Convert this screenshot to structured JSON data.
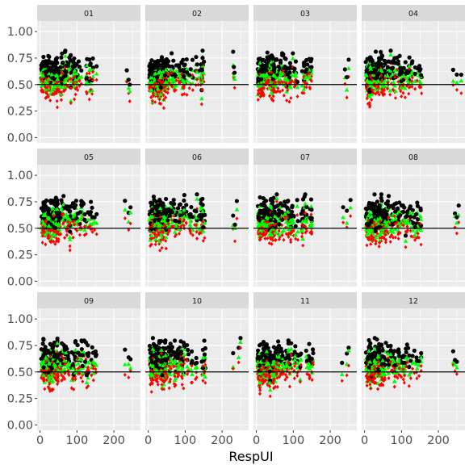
{
  "chart_data": {
    "type": "scatter",
    "xlabel": "RespUI",
    "ylabel": "",
    "xlim": [
      -8,
      272
    ],
    "ylim": [
      -0.05,
      1.1
    ],
    "xticks": [
      0,
      100,
      200
    ],
    "yticks": [
      0.0,
      0.25,
      0.5,
      0.75,
      1.0
    ],
    "ytick_labels": [
      "0.00",
      "0.25",
      "0.50",
      "0.75",
      "1.00"
    ],
    "reference_line_y": 0.5,
    "grid": true,
    "legend": "none",
    "facet_layout": {
      "rows": 3,
      "cols": 4
    },
    "facets": [
      "01",
      "02",
      "03",
      "04",
      "05",
      "06",
      "07",
      "08",
      "09",
      "10",
      "11",
      "12"
    ],
    "series": [
      {
        "marker": "circle",
        "color": "#000000"
      },
      {
        "marker": "triangle",
        "color": "#00ff00"
      },
      {
        "marker": "diamond",
        "color": "#ff0000"
      }
    ],
    "summary": [
      {
        "facet": "01",
        "outliers": [
          [
            235,
            0.57
          ],
          [
            240,
            0.48
          ],
          [
            243,
            0.41
          ]
        ]
      },
      {
        "facet": "02",
        "outliers": [
          [
            230,
            0.68
          ],
          [
            232,
            0.6
          ],
          [
            234,
            0.55
          ]
        ]
      },
      {
        "facet": "03",
        "outliers": [
          [
            240,
            0.56
          ],
          [
            250,
            0.64
          ],
          [
            245,
            0.45
          ]
        ]
      },
      {
        "facet": "04",
        "outliers": [
          [
            240,
            0.54
          ],
          [
            250,
            0.52
          ],
          [
            262,
            0.52
          ]
        ]
      },
      {
        "facet": "05",
        "outliers": [
          [
            230,
            0.66
          ],
          [
            240,
            0.58
          ],
          [
            245,
            0.62
          ]
        ]
      },
      {
        "facet": "06",
        "outliers": [
          [
            230,
            0.55
          ],
          [
            235,
            0.46
          ],
          [
            240,
            0.66
          ]
        ]
      },
      {
        "facet": "07",
        "outliers": [
          [
            235,
            0.61
          ],
          [
            245,
            0.57
          ],
          [
            255,
            0.68
          ]
        ]
      },
      {
        "facet": "08",
        "outliers": [
          [
            245,
            0.56
          ],
          [
            255,
            0.62
          ],
          [
            250,
            0.51
          ]
        ]
      },
      {
        "facet": "09",
        "outliers": [
          [
            230,
            0.59
          ],
          [
            240,
            0.57
          ],
          [
            245,
            0.55
          ]
        ]
      },
      {
        "facet": "10",
        "outliers": [
          [
            230,
            0.58
          ],
          [
            245,
            0.66
          ],
          [
            250,
            0.77
          ]
        ]
      },
      {
        "facet": "11",
        "outliers": [
          [
            232,
            0.49
          ],
          [
            245,
            0.58
          ],
          [
            250,
            0.66
          ]
        ]
      },
      {
        "facet": "12",
        "outliers": [
          [
            240,
            0.61
          ],
          [
            245,
            0.55
          ],
          [
            250,
            0.53
          ]
        ]
      }
    ]
  }
}
